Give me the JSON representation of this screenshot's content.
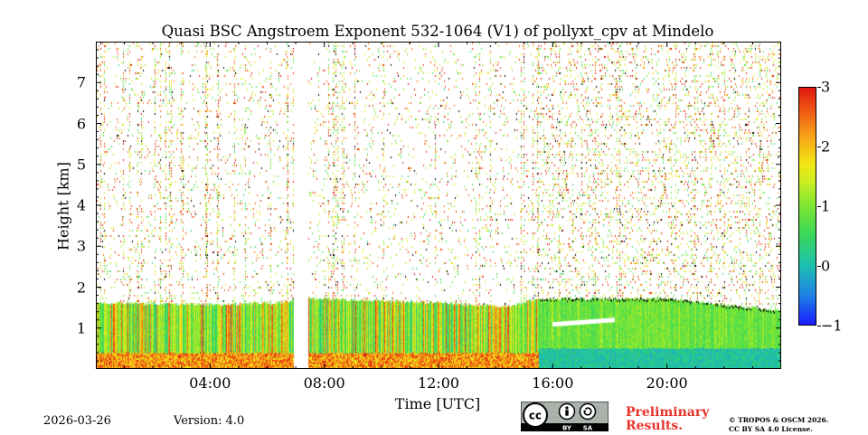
{
  "chart_data": {
    "type": "heatmap",
    "title": "Quasi BSC Angstroem Exponent 532-1064 (V1) of pollyxt_cpv at Mindelo",
    "xlabel": "Time [UTC]",
    "ylabel": "Height [km]",
    "xlim_hours": [
      0,
      24
    ],
    "ylim_km": [
      0,
      8
    ],
    "x_ticks": [
      {
        "hour": 4,
        "label": "04:00"
      },
      {
        "hour": 8,
        "label": "08:00"
      },
      {
        "hour": 12,
        "label": "12:00"
      },
      {
        "hour": 16,
        "label": "16:00"
      },
      {
        "hour": 20,
        "label": "20:00"
      }
    ],
    "y_ticks": [
      {
        "value": 1,
        "label": "1"
      },
      {
        "value": 2,
        "label": "2"
      },
      {
        "value": 3,
        "label": "3"
      },
      {
        "value": 4,
        "label": "4"
      },
      {
        "value": 5,
        "label": "5"
      },
      {
        "value": 6,
        "label": "6"
      },
      {
        "value": 7,
        "label": "7"
      }
    ],
    "colorbar": {
      "range": [
        -1,
        3
      ],
      "ticks": [
        {
          "value": 3,
          "label": "3"
        },
        {
          "value": 2,
          "label": "2"
        },
        {
          "value": 1,
          "label": "1"
        },
        {
          "value": 0,
          "label": "0"
        },
        {
          "value": -1,
          "label": "−1"
        }
      ],
      "colormap": "jet"
    },
    "aerosol_layer_top_km": [
      {
        "hour": 0.0,
        "top": 1.6
      },
      {
        "hour": 4.0,
        "top": 1.55
      },
      {
        "hour": 6.5,
        "top": 1.6
      },
      {
        "hour": 7.5,
        "top": 1.7
      },
      {
        "hour": 12.0,
        "top": 1.6
      },
      {
        "hour": 14.5,
        "top": 1.5
      },
      {
        "hour": 15.5,
        "top": 1.7
      },
      {
        "hour": 18.0,
        "top": 1.7
      },
      {
        "hour": 20.0,
        "top": 1.7
      },
      {
        "hour": 24.0,
        "top": 1.4
      }
    ],
    "data_gaps_hours": [
      [
        6.9,
        7.4
      ]
    ]
  },
  "footer": {
    "date": "2026-03-26",
    "version": "Version: 4.0",
    "preliminary_line1": "Preliminary",
    "preliminary_line2": "Results.",
    "copyright_line1": "© TROPOS & OSCM 2026.",
    "copyright_line2": "CC BY SA 4.0 License.",
    "badge_by": "BY",
    "badge_sa": "SA"
  }
}
